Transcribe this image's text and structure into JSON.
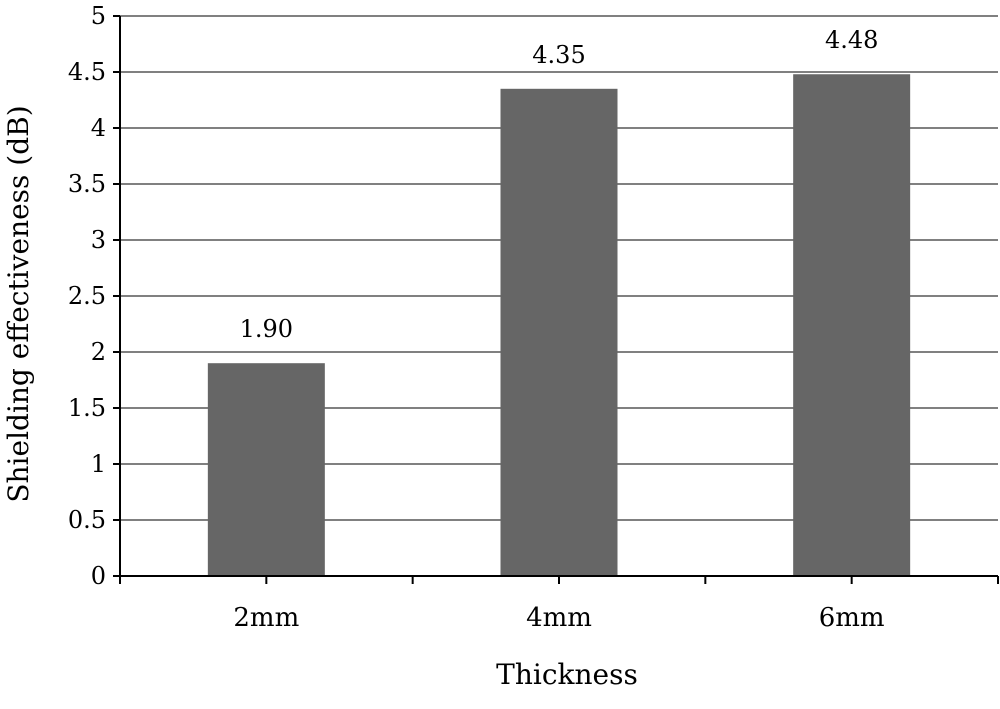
{
  "chart_data": {
    "type": "bar",
    "title": "",
    "xlabel": "Thickness",
    "ylabel": "Shielding effectiveness (dB)",
    "categories": [
      "2mm",
      "4mm",
      "6mm"
    ],
    "values": [
      1.9,
      4.35,
      4.48
    ],
    "value_labels": [
      "1.90",
      "4.35",
      "4.48"
    ],
    "ylim": [
      0,
      5
    ],
    "yticks": [
      0,
      0.5,
      1,
      1.5,
      2,
      2.5,
      3,
      3.5,
      4,
      4.5,
      5
    ],
    "ytick_labels": [
      "0",
      "0.5",
      "1",
      "1.5",
      "2",
      "2.5",
      "3",
      "3.5",
      "4",
      "4.5",
      "5"
    ],
    "grid": true,
    "legend": "none",
    "bar_color": "#666666"
  }
}
